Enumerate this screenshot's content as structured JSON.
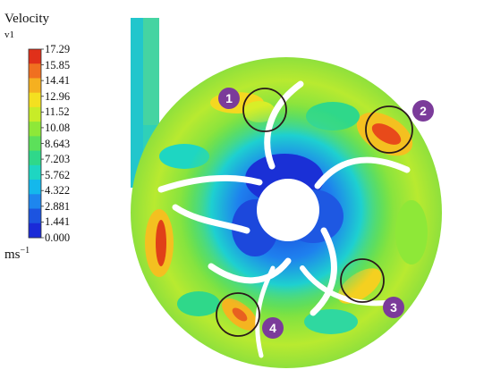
{
  "legend": {
    "title": "Velocity",
    "subtitle": "v1",
    "unit_base": "ms",
    "unit_exp": "−1",
    "ticks": [
      "17.29",
      "15.85",
      "14.41",
      "12.96",
      "11.52",
      "10.08",
      "8.643",
      "7.203",
      "5.762",
      "4.322",
      "2.881",
      "1.441",
      "0.000"
    ],
    "colors": [
      "#e0301a",
      "#f07020",
      "#f5b020",
      "#f4e020",
      "#c8ec28",
      "#8ee838",
      "#5ce05a",
      "#2fd88a",
      "#1ed6c2",
      "#14b8ec",
      "#1e86ee",
      "#1c54e0",
      "#1a2ad8"
    ]
  },
  "markers": [
    {
      "label": "1"
    },
    {
      "label": "2"
    },
    {
      "label": "3"
    },
    {
      "label": "4"
    }
  ],
  "colors": {
    "marker_fill": "#7b3b9a",
    "circle_stroke": "#2a1a1a",
    "blade": "#ffffff"
  }
}
